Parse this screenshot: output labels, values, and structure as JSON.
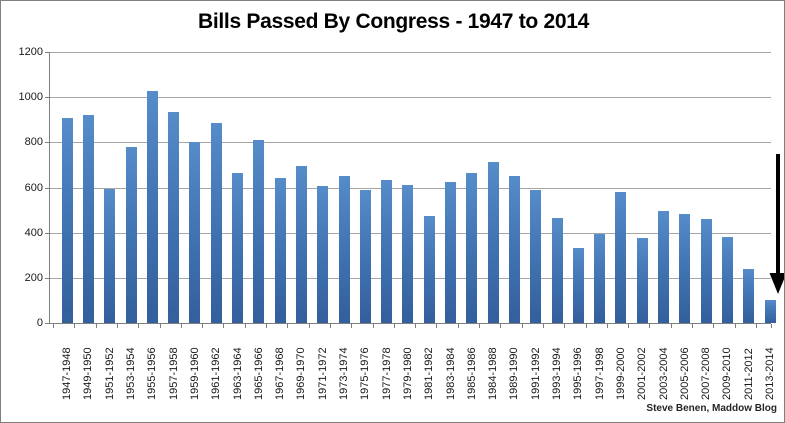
{
  "chart_data": {
    "type": "bar",
    "title": "Bills Passed By Congress - 1947 to 2014",
    "categories": [
      "1947-1948",
      "1949-1950",
      "1951-1952",
      "1953-1954",
      "1955-1956",
      "1957-1958",
      "1959-1960",
      "1961-1962",
      "1963-1964",
      "1965-1966",
      "1967-1968",
      "1969-1970",
      "1971-1972",
      "1973-1974",
      "1975-1976",
      "1977-1978",
      "1979-1980",
      "1981-1982",
      "1983-1984",
      "1985-1986",
      "1984-1988",
      "1989-1990",
      "1991-1992",
      "1993-1994",
      "1995-1996",
      "1997-1998",
      "1999-2000",
      "2001-2002",
      "2003-2004",
      "2005-2006",
      "2007-2008",
      "2009-2010",
      "2011-2012",
      "2013-2014"
    ],
    "values": [
      906,
      921,
      594,
      781,
      1028,
      936,
      800,
      885,
      666,
      810,
      640,
      695,
      607,
      649,
      588,
      633,
      613,
      473,
      623,
      664,
      713,
      650,
      590,
      465,
      333,
      394,
      580,
      377,
      498,
      482,
      460,
      383,
      238,
      100
    ],
    "xlabel": "",
    "ylabel": "",
    "ylim": [
      0,
      1200
    ],
    "yticks": [
      0,
      200,
      400,
      600,
      800,
      1000,
      1200
    ],
    "grid": true,
    "legend": false,
    "bar_color": "#4478b6",
    "gridline_color": "#a6a6a6",
    "axis_color": "#7f7f7f",
    "annotation": {
      "type": "down-arrow",
      "target_category": "2013-2014",
      "from_value": 748,
      "to_value": 128,
      "color": "#000000"
    },
    "attribution": "Steve Benen, Maddow Blog"
  }
}
